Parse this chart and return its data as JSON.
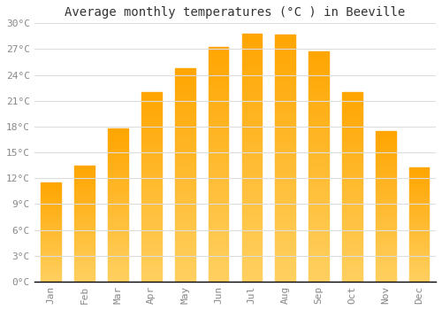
{
  "title": "Average monthly temperatures (°C ) in Beeville",
  "months": [
    "Jan",
    "Feb",
    "Mar",
    "Apr",
    "May",
    "Jun",
    "Jul",
    "Aug",
    "Sep",
    "Oct",
    "Nov",
    "Dec"
  ],
  "values": [
    11.5,
    13.5,
    17.8,
    22.0,
    24.8,
    27.3,
    28.8,
    28.7,
    26.7,
    22.0,
    17.5,
    13.3
  ],
  "bar_color_top": "#FFA500",
  "bar_color_bottom": "#FFD060",
  "background_color": "#FFFFFF",
  "grid_color": "#DDDDDD",
  "text_color": "#888888",
  "axis_color": "#000000",
  "ylim": [
    0,
    30
  ],
  "yticks": [
    0,
    3,
    6,
    9,
    12,
    15,
    18,
    21,
    24,
    27,
    30
  ],
  "ytick_labels": [
    "0°C",
    "3°C",
    "6°C",
    "9°C",
    "12°C",
    "15°C",
    "18°C",
    "21°C",
    "24°C",
    "27°C",
    "30°C"
  ],
  "title_fontsize": 10,
  "tick_fontsize": 8,
  "font_family": "monospace",
  "bar_width": 0.6
}
